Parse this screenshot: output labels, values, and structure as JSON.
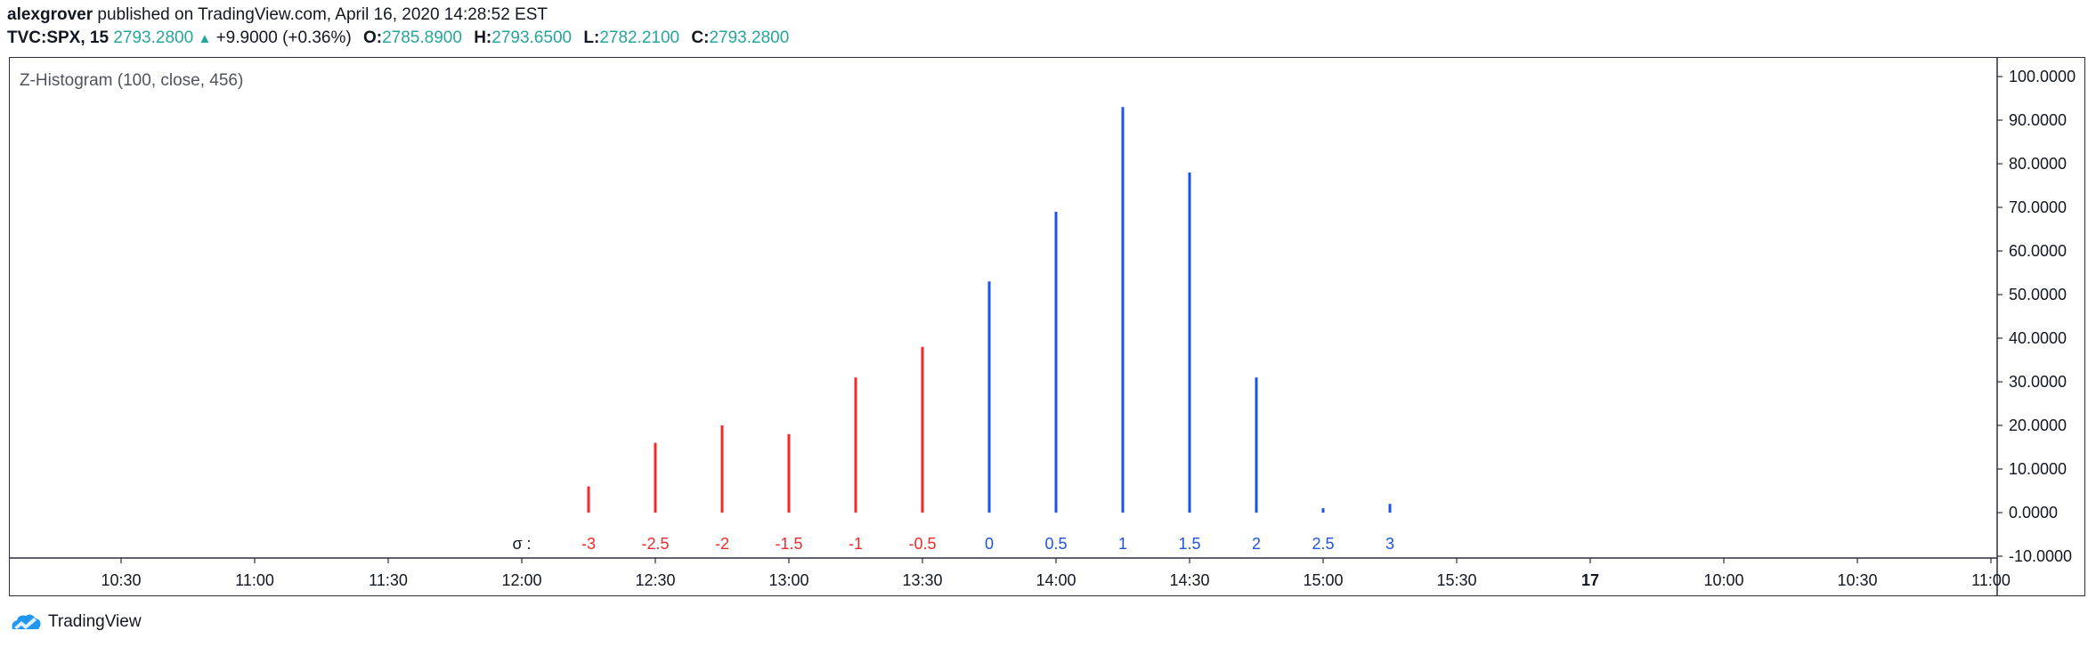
{
  "header": {
    "author": "alexgrover",
    "published_text": " published on TradingView.com, April 16, 2020 14:28:52 EST",
    "symbol": "TVC:SPX, 15",
    "last_price": "2793.2800",
    "change": "+9.9000 (+0.36%)",
    "open_label": "O:",
    "open_value": "2785.8900",
    "high_label": "H:",
    "high_value": "2793.6500",
    "low_label": "L:",
    "low_value": "2782.2100",
    "close_label": "C:",
    "close_value": "2793.2800"
  },
  "footer": {
    "brand": "TradingView"
  },
  "colors": {
    "negative": "#f42a2a",
    "positive": "#1e53e5",
    "teal": "#26a69a",
    "axis_text": "#131722",
    "indicator_text": "#50535e"
  },
  "chart_data": {
    "type": "bar",
    "indicator_label": "Z-Histogram (100, close, 456)",
    "sigma_label": "σ :",
    "categories": [
      "-3",
      "-2.5",
      "-2",
      "-1.5",
      "-1",
      "-0.5",
      "0",
      "0.5",
      "1",
      "1.5",
      "2",
      "2.5",
      "3"
    ],
    "values": [
      6,
      16,
      20,
      18,
      31,
      38,
      53,
      69,
      93,
      78,
      31,
      1,
      2
    ],
    "series": [
      {
        "sign": "negative",
        "categories": [
          "-3",
          "-2.5",
          "-2",
          "-1.5",
          "-1",
          "-0.5"
        ]
      },
      {
        "sign": "positive",
        "categories": [
          "0",
          "0.5",
          "1",
          "1.5",
          "2",
          "2.5",
          "3"
        ]
      }
    ],
    "bar_times": [
      "12:15",
      "12:30",
      "12:45",
      "13:00",
      "13:15",
      "13:30",
      "13:45",
      "14:00",
      "14:15",
      "14:30",
      "14:45",
      "15:00",
      "15:15"
    ],
    "ylim": [
      -10,
      100
    ],
    "y_ticks": [
      "100.0000",
      "90.0000",
      "80.0000",
      "70.0000",
      "60.0000",
      "50.0000",
      "40.0000",
      "30.0000",
      "20.0000",
      "10.0000",
      "0.0000",
      "-10.0000"
    ],
    "x_ticks": [
      "10:30",
      "11:00",
      "11:30",
      "12:00",
      "12:30",
      "13:00",
      "13:30",
      "14:00",
      "14:30",
      "15:00",
      "15:30",
      "17",
      "10:00",
      "10:30",
      "11:00"
    ],
    "grid": false
  }
}
